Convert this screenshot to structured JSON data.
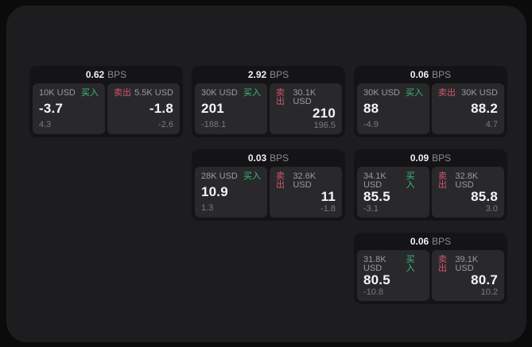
{
  "labels": {
    "buy": "买入",
    "sell": "卖出",
    "bps": "BPS"
  },
  "colors": {
    "buy_green": "#3dba78",
    "sell_red": "#d4566c",
    "window_bg": "#1d1d1f",
    "card_bg": "#141416",
    "panel_bg": "#29292c"
  },
  "cards": [
    {
      "bps": "0.62",
      "buy": {
        "amount": "10K USD",
        "value": "-3.7",
        "sub": "4.3"
      },
      "sell": {
        "amount": "5.5K USD",
        "value": "-1.8",
        "sub": "-2.6"
      }
    },
    {
      "bps": "2.92",
      "buy": {
        "amount": "30K USD",
        "value": "201",
        "sub": "-188.1"
      },
      "sell": {
        "amount": "30.1K USD",
        "value": "210",
        "sub": "196.5"
      }
    },
    {
      "bps": "0.06",
      "buy": {
        "amount": "30K USD",
        "value": "88",
        "sub": "-4.9"
      },
      "sell": {
        "amount": "30K USD",
        "value": "88.2",
        "sub": "4.7"
      }
    },
    {
      "bps": "0.03",
      "buy": {
        "amount": "28K USD",
        "value": "10.9",
        "sub": "1.3"
      },
      "sell": {
        "amount": "32.6K USD",
        "value": "11",
        "sub": "-1.8"
      }
    },
    {
      "bps": "0.09",
      "buy": {
        "amount": "34.1K USD",
        "value": "85.5",
        "sub": "-3.1"
      },
      "sell": {
        "amount": "32.8K USD",
        "value": "85.8",
        "sub": "3.0"
      }
    },
    {
      "bps": "0.06",
      "buy": {
        "amount": "31.8K USD",
        "value": "80.5",
        "sub": "-10.8"
      },
      "sell": {
        "amount": "39.1K USD",
        "value": "80.7",
        "sub": "10.2"
      }
    }
  ]
}
